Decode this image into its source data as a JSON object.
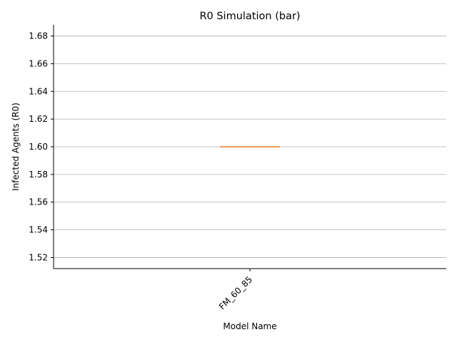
{
  "chart_data": {
    "type": "box",
    "title": "R0 Simulation (bar)",
    "xlabel": "Model Name",
    "ylabel": "Infected Agents (R0)",
    "categories": [
      "FM_60_85"
    ],
    "series": [
      {
        "category": "FM_60_85",
        "min": 1.6,
        "q1": 1.6,
        "median": 1.6,
        "q3": 1.6,
        "max": 1.6
      }
    ],
    "ylim": [
      1.512,
      1.688
    ],
    "yticks": [
      1.52,
      1.54,
      1.56,
      1.58,
      1.6,
      1.62,
      1.64,
      1.66,
      1.68
    ],
    "ytick_labels": [
      "1.52",
      "1.54",
      "1.56",
      "1.58",
      "1.60",
      "1.62",
      "1.64",
      "1.66",
      "1.68"
    ],
    "grid": {
      "y": true,
      "x": false
    },
    "colors": {
      "median": "#f58a4a",
      "box": "#1f1f1f",
      "grid": "#b0b0b0",
      "axis": "#000000"
    }
  }
}
